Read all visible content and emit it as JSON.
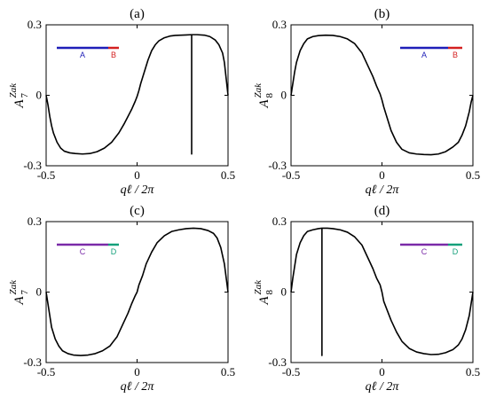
{
  "chart_data": [
    {
      "type": "line",
      "title": "(a)",
      "xlabel": "qℓ / 2π",
      "ylabel": {
        "base": "A",
        "sup": "Zak",
        "sub": "7"
      },
      "xlim": [
        -0.5,
        0.5
      ],
      "ylim": [
        -0.3,
        0.3
      ],
      "xticks": [
        "-0.5",
        "0",
        "0.5"
      ],
      "yticks": [
        "-0.3",
        "0",
        "0.3"
      ],
      "legend": {
        "placement": "top-left",
        "segments": [
          {
            "label": "A",
            "color": "#1f1fb8"
          },
          {
            "label": "B",
            "color": "#d42020"
          }
        ]
      },
      "series": [
        {
          "color": "#000000",
          "x": [
            -0.5,
            -0.49,
            -0.48,
            -0.47,
            -0.46,
            -0.44,
            -0.42,
            -0.4,
            -0.37,
            -0.34,
            -0.3,
            -0.26,
            -0.22,
            -0.18,
            -0.14,
            -0.1,
            -0.07,
            -0.05,
            -0.03,
            -0.01,
            0.0,
            0.01,
            0.02,
            0.04,
            0.06,
            0.08,
            0.1,
            0.12,
            0.15,
            0.18,
            0.21,
            0.24,
            0.27,
            0.3,
            0.3,
            0.3,
            0.33,
            0.37,
            0.4,
            0.43,
            0.45,
            0.47,
            0.48,
            0.49,
            0.5
          ],
          "y": [
            0.0,
            -0.04,
            -0.09,
            -0.13,
            -0.16,
            -0.2,
            -0.225,
            -0.238,
            -0.245,
            -0.248,
            -0.25,
            -0.248,
            -0.24,
            -0.225,
            -0.2,
            -0.16,
            -0.12,
            -0.09,
            -0.06,
            -0.025,
            -0.005,
            0.02,
            0.05,
            0.1,
            0.15,
            0.19,
            0.215,
            0.232,
            0.245,
            0.252,
            0.255,
            0.256,
            0.257,
            0.258,
            -0.25,
            0.258,
            0.258,
            0.256,
            0.25,
            0.235,
            0.215,
            0.18,
            0.14,
            0.07,
            0.0
          ]
        }
      ]
    },
    {
      "type": "line",
      "title": "(b)",
      "xlabel": "qℓ / 2π",
      "ylabel": {
        "base": "A",
        "sup": "Zak",
        "sub": "8"
      },
      "xlim": [
        -0.5,
        0.5
      ],
      "ylim": [
        -0.3,
        0.3
      ],
      "xticks": [
        "-0.5",
        "0",
        "0.5"
      ],
      "yticks": [
        "-0.3",
        "0",
        "0.3"
      ],
      "legend": {
        "placement": "top-right",
        "segments": [
          {
            "label": "A",
            "color": "#1f1fb8"
          },
          {
            "label": "B",
            "color": "#d42020"
          }
        ]
      },
      "series": [
        {
          "color": "#000000",
          "x": [
            -0.5,
            -0.49,
            -0.48,
            -0.47,
            -0.45,
            -0.43,
            -0.41,
            -0.38,
            -0.35,
            -0.31,
            -0.27,
            -0.23,
            -0.19,
            -0.15,
            -0.11,
            -0.08,
            -0.05,
            -0.03,
            -0.01,
            0.0,
            0.01,
            0.03,
            0.05,
            0.08,
            0.11,
            0.15,
            0.19,
            0.23,
            0.27,
            0.31,
            0.35,
            0.39,
            0.42,
            0.44,
            0.46,
            0.48,
            0.49,
            0.5
          ],
          "y": [
            0.0,
            0.05,
            0.1,
            0.14,
            0.19,
            0.22,
            0.24,
            0.25,
            0.254,
            0.256,
            0.255,
            0.25,
            0.24,
            0.22,
            0.18,
            0.13,
            0.08,
            0.04,
            0.005,
            -0.02,
            -0.05,
            -0.1,
            -0.15,
            -0.2,
            -0.23,
            -0.245,
            -0.25,
            -0.252,
            -0.253,
            -0.25,
            -0.24,
            -0.22,
            -0.2,
            -0.17,
            -0.13,
            -0.07,
            -0.03,
            0.0
          ]
        }
      ]
    },
    {
      "type": "line",
      "title": "(c)",
      "xlabel": "qℓ / 2π",
      "ylabel": {
        "base": "A",
        "sup": "Zak",
        "sub": "7"
      },
      "xlim": [
        -0.5,
        0.5
      ],
      "ylim": [
        -0.3,
        0.3
      ],
      "xticks": [
        "-0.5",
        "0",
        "0.5"
      ],
      "yticks": [
        "-0.3",
        "0",
        "0.3"
      ],
      "legend": {
        "placement": "top-left",
        "segments": [
          {
            "label": "C",
            "color": "#7a2aa8"
          },
          {
            "label": "D",
            "color": "#14a07a"
          }
        ]
      },
      "series": [
        {
          "color": "#000000",
          "x": [
            -0.5,
            -0.49,
            -0.48,
            -0.47,
            -0.45,
            -0.43,
            -0.41,
            -0.38,
            -0.35,
            -0.31,
            -0.27,
            -0.23,
            -0.19,
            -0.15,
            -0.11,
            -0.08,
            -0.05,
            -0.03,
            -0.01,
            0.0,
            0.01,
            0.03,
            0.05,
            0.08,
            0.11,
            0.15,
            0.19,
            0.23,
            0.27,
            0.31,
            0.35,
            0.39,
            0.42,
            0.44,
            0.46,
            0.48,
            0.49,
            0.5
          ],
          "y": [
            0.0,
            -0.05,
            -0.1,
            -0.15,
            -0.2,
            -0.23,
            -0.25,
            -0.262,
            -0.268,
            -0.27,
            -0.268,
            -0.262,
            -0.25,
            -0.23,
            -0.19,
            -0.14,
            -0.09,
            -0.05,
            -0.015,
            0.0,
            0.03,
            0.07,
            0.12,
            0.17,
            0.21,
            0.24,
            0.258,
            0.265,
            0.27,
            0.272,
            0.27,
            0.262,
            0.25,
            0.23,
            0.19,
            0.12,
            0.06,
            0.0
          ]
        }
      ]
    },
    {
      "type": "line",
      "title": "(d)",
      "xlabel": "qℓ / 2π",
      "ylabel": {
        "base": "A",
        "sup": "Zak",
        "sub": "8"
      },
      "xlim": [
        -0.5,
        0.5
      ],
      "ylim": [
        -0.3,
        0.3
      ],
      "xticks": [
        "-0.5",
        "0",
        "0.5"
      ],
      "yticks": [
        "-0.3",
        "0",
        "0.3"
      ],
      "legend": {
        "placement": "top-right",
        "segments": [
          {
            "label": "C",
            "color": "#7a2aa8"
          },
          {
            "label": "D",
            "color": "#14a07a"
          }
        ]
      },
      "series": [
        {
          "color": "#000000",
          "x": [
            -0.5,
            -0.49,
            -0.48,
            -0.47,
            -0.45,
            -0.43,
            -0.41,
            -0.38,
            -0.35,
            -0.33,
            -0.33,
            -0.33,
            -0.3,
            -0.27,
            -0.23,
            -0.19,
            -0.15,
            -0.11,
            -0.08,
            -0.05,
            -0.03,
            -0.01,
            0.0,
            0.01,
            0.03,
            0.05,
            0.08,
            0.11,
            0.15,
            0.19,
            0.23,
            0.27,
            0.31,
            0.35,
            0.39,
            0.42,
            0.44,
            0.46,
            0.48,
            0.49,
            0.5
          ],
          "y": [
            0.0,
            0.06,
            0.11,
            0.16,
            0.21,
            0.24,
            0.258,
            0.265,
            0.27,
            0.272,
            -0.27,
            0.272,
            0.272,
            0.27,
            0.265,
            0.255,
            0.235,
            0.2,
            0.15,
            0.1,
            0.06,
            0.03,
            0.0,
            -0.04,
            -0.08,
            -0.12,
            -0.17,
            -0.21,
            -0.24,
            -0.255,
            -0.262,
            -0.266,
            -0.265,
            -0.258,
            -0.245,
            -0.225,
            -0.2,
            -0.16,
            -0.1,
            -0.05,
            0.0
          ]
        }
      ]
    }
  ]
}
